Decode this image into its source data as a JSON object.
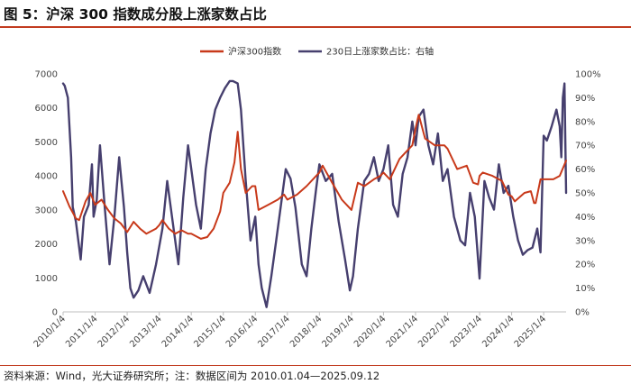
{
  "title": "图 5：沪深 300 指数成分股上涨家数占比",
  "source": "资料来源：Wind，光大证券研究所；注：数据区间为 2010.01.04—2025.09.12",
  "chart_data": {
    "type": "line",
    "legend_position": "top-center",
    "grid": false,
    "series": [
      {
        "name": "沪深300指数",
        "axis": "left",
        "color": "#c8391a",
        "x": [
          2010.0,
          2010.2,
          2010.4,
          2010.5,
          2010.7,
          2010.85,
          2011.0,
          2011.2,
          2011.4,
          2011.6,
          2011.8,
          2012.0,
          2012.2,
          2012.4,
          2012.6,
          2012.9,
          2013.0,
          2013.1,
          2013.3,
          2013.5,
          2013.7,
          2013.9,
          2014.0,
          2014.3,
          2014.5,
          2014.7,
          2014.9,
          2015.0,
          2015.2,
          2015.35,
          2015.45,
          2015.55,
          2015.7,
          2015.9,
          2016.0,
          2016.1,
          2016.4,
          2016.7,
          2016.9,
          2017.0,
          2017.3,
          2017.6,
          2017.9,
          2018.0,
          2018.1,
          2018.4,
          2018.7,
          2018.9,
          2019.0,
          2019.2,
          2019.4,
          2019.7,
          2019.9,
          2020.0,
          2020.2,
          2020.5,
          2020.7,
          2020.9,
          2021.0,
          2021.1,
          2021.3,
          2021.6,
          2021.9,
          2022.0,
          2022.3,
          2022.6,
          2022.8,
          2022.95,
          2023.0,
          2023.1,
          2023.4,
          2023.7,
          2023.9,
          2024.0,
          2024.1,
          2024.4,
          2024.6,
          2024.7,
          2024.75,
          2024.9,
          2025.0,
          2025.3,
          2025.5,
          2025.7
        ],
        "values": [
          3550,
          3100,
          2750,
          2700,
          3250,
          3500,
          3150,
          3300,
          3000,
          2750,
          2600,
          2350,
          2650,
          2450,
          2300,
          2450,
          2550,
          2700,
          2450,
          2300,
          2400,
          2300,
          2300,
          2150,
          2200,
          2450,
          2950,
          3500,
          3800,
          4400,
          5300,
          4200,
          3500,
          3700,
          3700,
          3000,
          3150,
          3300,
          3450,
          3300,
          3450,
          3700,
          4000,
          4100,
          4300,
          3800,
          3300,
          3100,
          3000,
          3800,
          3700,
          3900,
          4000,
          4100,
          3900,
          4500,
          4700,
          4900,
          5400,
          5800,
          5100,
          4900,
          4900,
          4800,
          4200,
          4300,
          3800,
          3750,
          4000,
          4100,
          4000,
          3850,
          3450,
          3400,
          3250,
          3500,
          3550,
          3200,
          3200,
          3900,
          3900,
          3900,
          4000,
          4450
        ]
      },
      {
        "name": "230日上涨家数占比：右轴",
        "axis": "right",
        "color": "#463f6e",
        "x": [
          2010.0,
          2010.05,
          2010.15,
          2010.25,
          2010.3,
          2010.4,
          2010.55,
          2010.65,
          2010.8,
          2010.9,
          2010.95,
          2011.05,
          2011.15,
          2011.3,
          2011.45,
          2011.6,
          2011.75,
          2011.9,
          2012.0,
          2012.1,
          2012.2,
          2012.35,
          2012.5,
          2012.7,
          2012.9,
          2013.1,
          2013.25,
          2013.4,
          2013.6,
          2013.75,
          2013.9,
          2014.0,
          2014.15,
          2014.3,
          2014.45,
          2014.6,
          2014.75,
          2014.9,
          2015.05,
          2015.2,
          2015.3,
          2015.45,
          2015.55,
          2015.7,
          2015.85,
          2016.0,
          2016.1,
          2016.2,
          2016.35,
          2016.5,
          2016.65,
          2016.8,
          2016.95,
          2017.1,
          2017.25,
          2017.45,
          2017.6,
          2017.75,
          2017.9,
          2018.0,
          2018.2,
          2018.4,
          2018.6,
          2018.8,
          2018.95,
          2019.05,
          2019.2,
          2019.4,
          2019.55,
          2019.7,
          2019.85,
          2020.0,
          2020.15,
          2020.3,
          2020.45,
          2020.6,
          2020.75,
          2020.9,
          2021.0,
          2021.1,
          2021.25,
          2021.4,
          2021.55,
          2021.7,
          2021.85,
          2022.0,
          2022.2,
          2022.4,
          2022.55,
          2022.7,
          2022.85,
          2023.0,
          2023.15,
          2023.3,
          2023.45,
          2023.6,
          2023.75,
          2023.9,
          2024.05,
          2024.2,
          2024.35,
          2024.5,
          2024.65,
          2024.8,
          2024.9,
          2025.0,
          2025.1,
          2025.25,
          2025.4,
          2025.5,
          2025.55,
          2025.6,
          2025.65,
          2025.7
        ],
        "values": [
          96,
          95,
          90,
          65,
          44,
          38,
          22,
          40,
          45,
          62,
          40,
          47,
          70,
          44,
          20,
          40,
          65,
          44,
          25,
          10,
          6,
          9,
          15,
          8,
          20,
          35,
          55,
          40,
          20,
          48,
          70,
          60,
          45,
          35,
          60,
          75,
          85,
          90,
          94,
          97,
          97,
          96,
          85,
          55,
          30,
          40,
          20,
          10,
          2,
          15,
          30,
          45,
          60,
          56,
          44,
          20,
          15,
          35,
          52,
          62,
          55,
          58,
          38,
          22,
          9,
          15,
          35,
          55,
          58,
          65,
          55,
          60,
          70,
          45,
          40,
          58,
          65,
          80,
          70,
          82,
          85,
          70,
          62,
          75,
          55,
          60,
          40,
          30,
          28,
          50,
          40,
          14,
          55,
          48,
          43,
          62,
          50,
          53,
          40,
          30,
          24,
          26,
          27,
          35,
          25,
          74,
          72,
          78,
          85,
          78,
          65,
          90,
          96,
          50
        ]
      }
    ],
    "x_ticks": [
      "2010/1/4",
      "2011/1/4",
      "2012/1/4",
      "2013/1/4",
      "2014/1/4",
      "2015/1/4",
      "2016/1/4",
      "2017/1/4",
      "2018/1/4",
      "2019/1/4",
      "2020/1/4",
      "2021/1/4",
      "2022/1/4",
      "2023/1/4",
      "2024/1/4",
      "2025/1/4"
    ],
    "x_tick_pos": [
      2010,
      2011,
      2012,
      2013,
      2014,
      2015,
      2016,
      2017,
      2018,
      2019,
      2020,
      2021,
      2022,
      2023,
      2024,
      2025
    ],
    "xlim": [
      2010.0,
      2025.7
    ],
    "y_left": {
      "min": 0,
      "max": 7000,
      "ticks": [
        0,
        1000,
        2000,
        3000,
        4000,
        5000,
        6000,
        7000
      ],
      "labels": [
        "0",
        "1000",
        "2000",
        "3000",
        "4000",
        "5000",
        "6000",
        "7000"
      ]
    },
    "y_right": {
      "min": 0,
      "max": 100,
      "ticks": [
        0,
        10,
        20,
        30,
        40,
        50,
        60,
        70,
        80,
        90,
        100
      ],
      "labels": [
        "0%",
        "10%",
        "20%",
        "30%",
        "40%",
        "50%",
        "60%",
        "70%",
        "80%",
        "90%",
        "100%"
      ]
    }
  }
}
